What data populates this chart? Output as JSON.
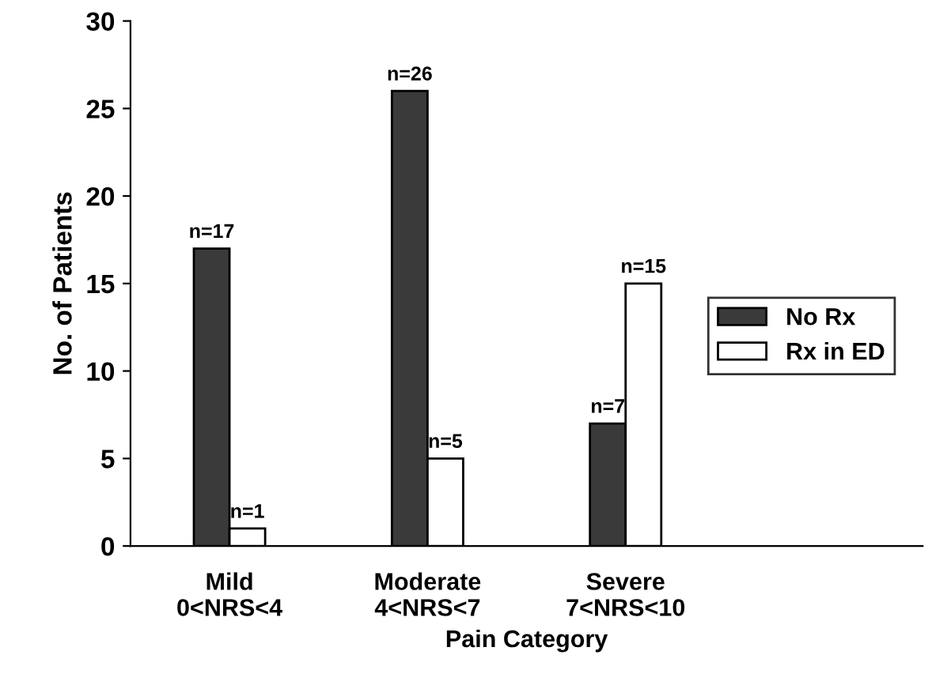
{
  "chart_data": {
    "type": "bar",
    "xlabel": "Pain Category",
    "ylabel": "No. of Patients",
    "categories": [
      "Mild\n0<NRS<4",
      "Moderate\n4<NRS<7",
      "Severe\n7<NRS<10"
    ],
    "series": [
      {
        "name": "No Rx",
        "color": "#3a3a3a",
        "values": [
          17,
          26,
          7
        ],
        "value_labels": [
          "n=17",
          "n=26",
          "n=7"
        ]
      },
      {
        "name": "Rx in ED",
        "color": "#ffffff",
        "values": [
          1,
          5,
          15
        ],
        "value_labels": [
          "n=1",
          "n=5",
          "n=15"
        ]
      }
    ],
    "ylim": [
      0,
      30
    ],
    "yticks": [
      0,
      5,
      10,
      15,
      20,
      25,
      30
    ],
    "grid": false,
    "legend": "right"
  }
}
